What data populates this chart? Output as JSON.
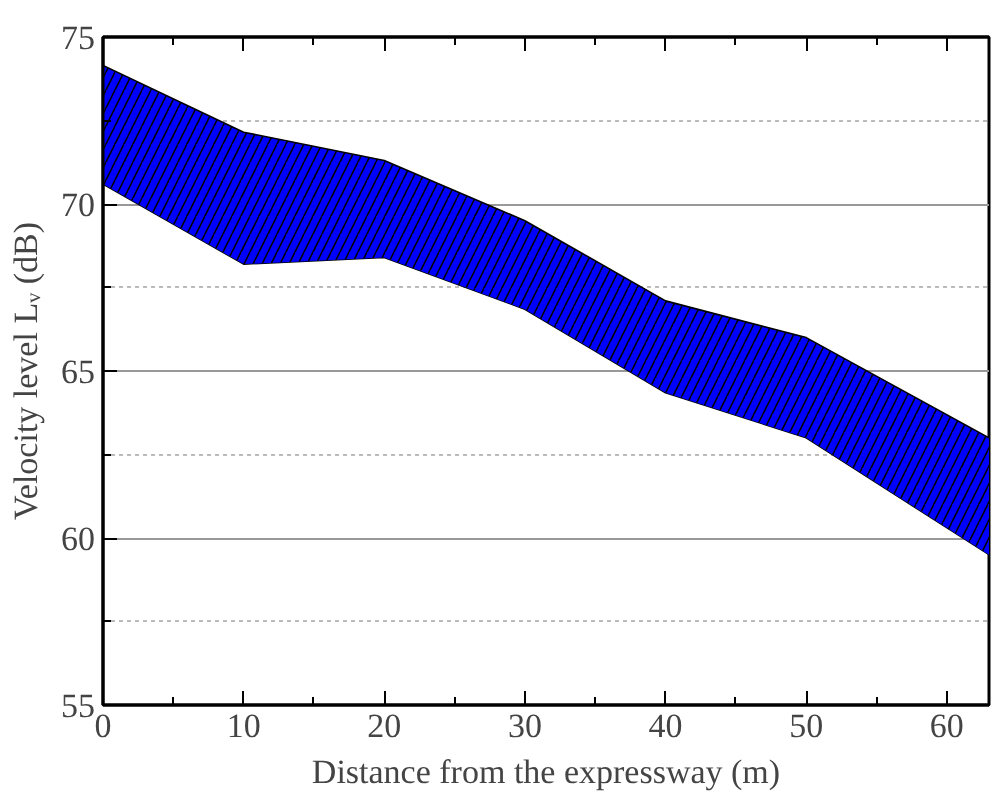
{
  "chart_data": {
    "type": "area",
    "xlabel": "Distance from the expressway (m)",
    "ylabel": "Velocity level Lᵥ (dB)",
    "x": [
      0,
      10,
      20,
      30,
      40,
      50,
      63
    ],
    "series": [
      {
        "type": "line",
        "color": "#000000",
        "values": [
          70.6,
          68.2,
          68.4,
          66.85,
          64.35,
          63.0,
          59.5
        ]
      },
      {
        "color": "#0000ff",
        "values": [
          74.15,
          72.15,
          71.3,
          69.5,
          67.1,
          66.0,
          63.0
        ]
      }
    ],
    "xlim": [
      0,
      63
    ],
    "ylim": [
      55,
      75
    ],
    "xticks": [
      0,
      10,
      20,
      30,
      40,
      50,
      60
    ],
    "yticks": [
      55,
      60,
      65,
      70,
      75
    ],
    "grid": "y"
  }
}
